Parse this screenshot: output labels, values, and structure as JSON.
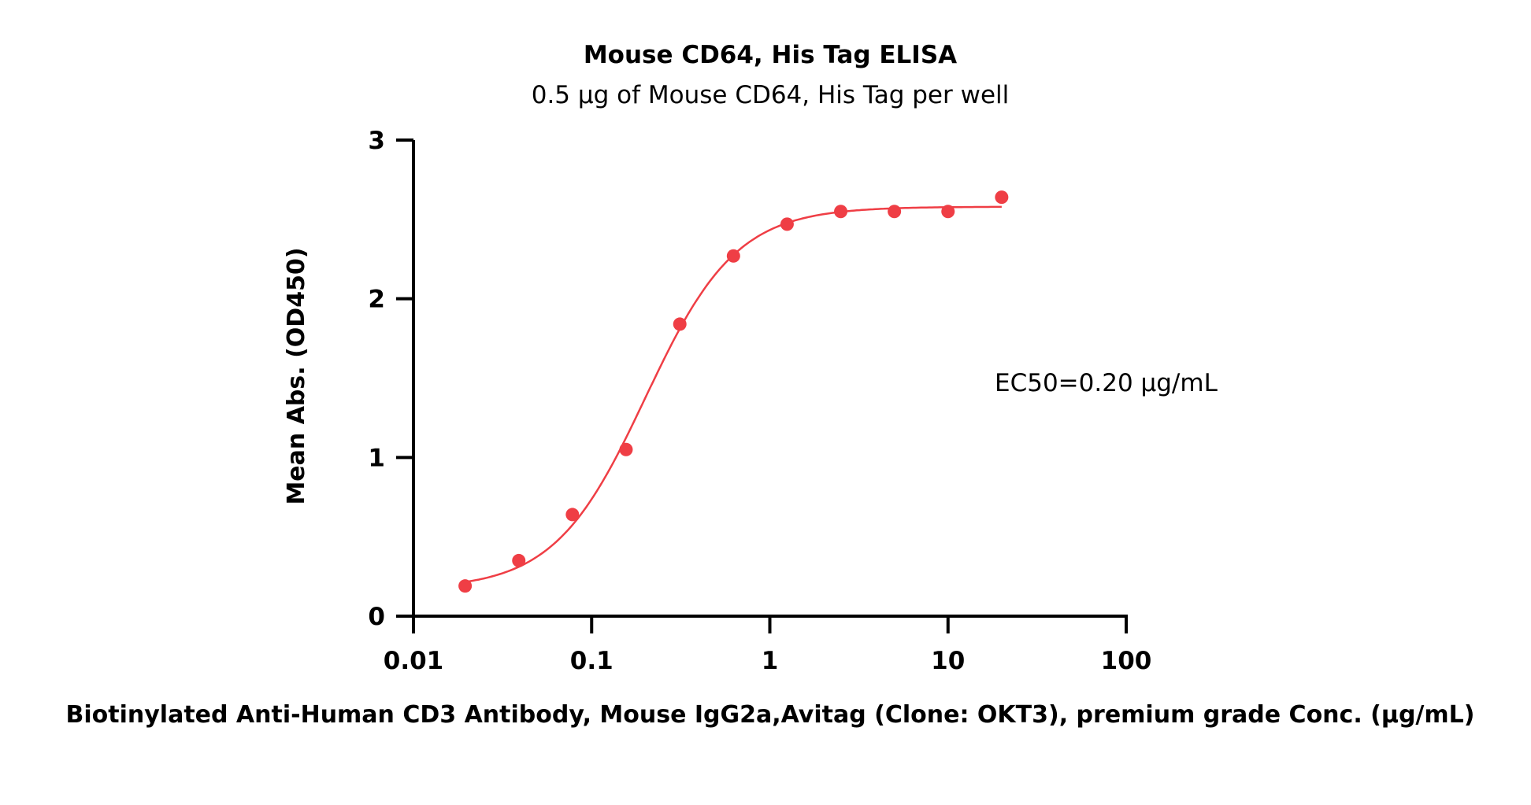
{
  "chart_data": {
    "type": "scatter",
    "title": "Mouse CD64, His Tag ELISA",
    "subtitle": "0.5 µg of Mouse CD64, His Tag per well",
    "xlabel": "Biotinylated Anti-Human CD3 Antibody, Mouse IgG2a,Avitag (Clone: OKT3), premium grade Conc. (µg/mL)",
    "ylabel": "Mean Abs. (OD450)",
    "x_scale": "log",
    "xlim": [
      0.01,
      100
    ],
    "ylim": [
      0,
      3
    ],
    "x_ticks": [
      "0.01",
      "0.1",
      "1",
      "10",
      "100"
    ],
    "y_ticks": [
      "0",
      "1",
      "2",
      "3"
    ],
    "grid": false,
    "annotation": "EC50=0.20 µg/mL",
    "colors": {
      "series": "#ef3e45",
      "axis": "#000000"
    },
    "series": [
      {
        "x": [
          0.0195,
          0.039,
          0.078,
          0.156,
          0.3125,
          0.625,
          1.25,
          2.5,
          5,
          10,
          20
        ],
        "y": [
          0.19,
          0.35,
          0.64,
          1.05,
          1.84,
          2.27,
          2.47,
          2.55,
          2.55,
          2.55,
          2.64
        ]
      }
    ],
    "fit": {
      "model": "4PL",
      "bottom": 0.17,
      "top": 2.58,
      "ec50": 0.2,
      "hill": 1.7
    }
  }
}
